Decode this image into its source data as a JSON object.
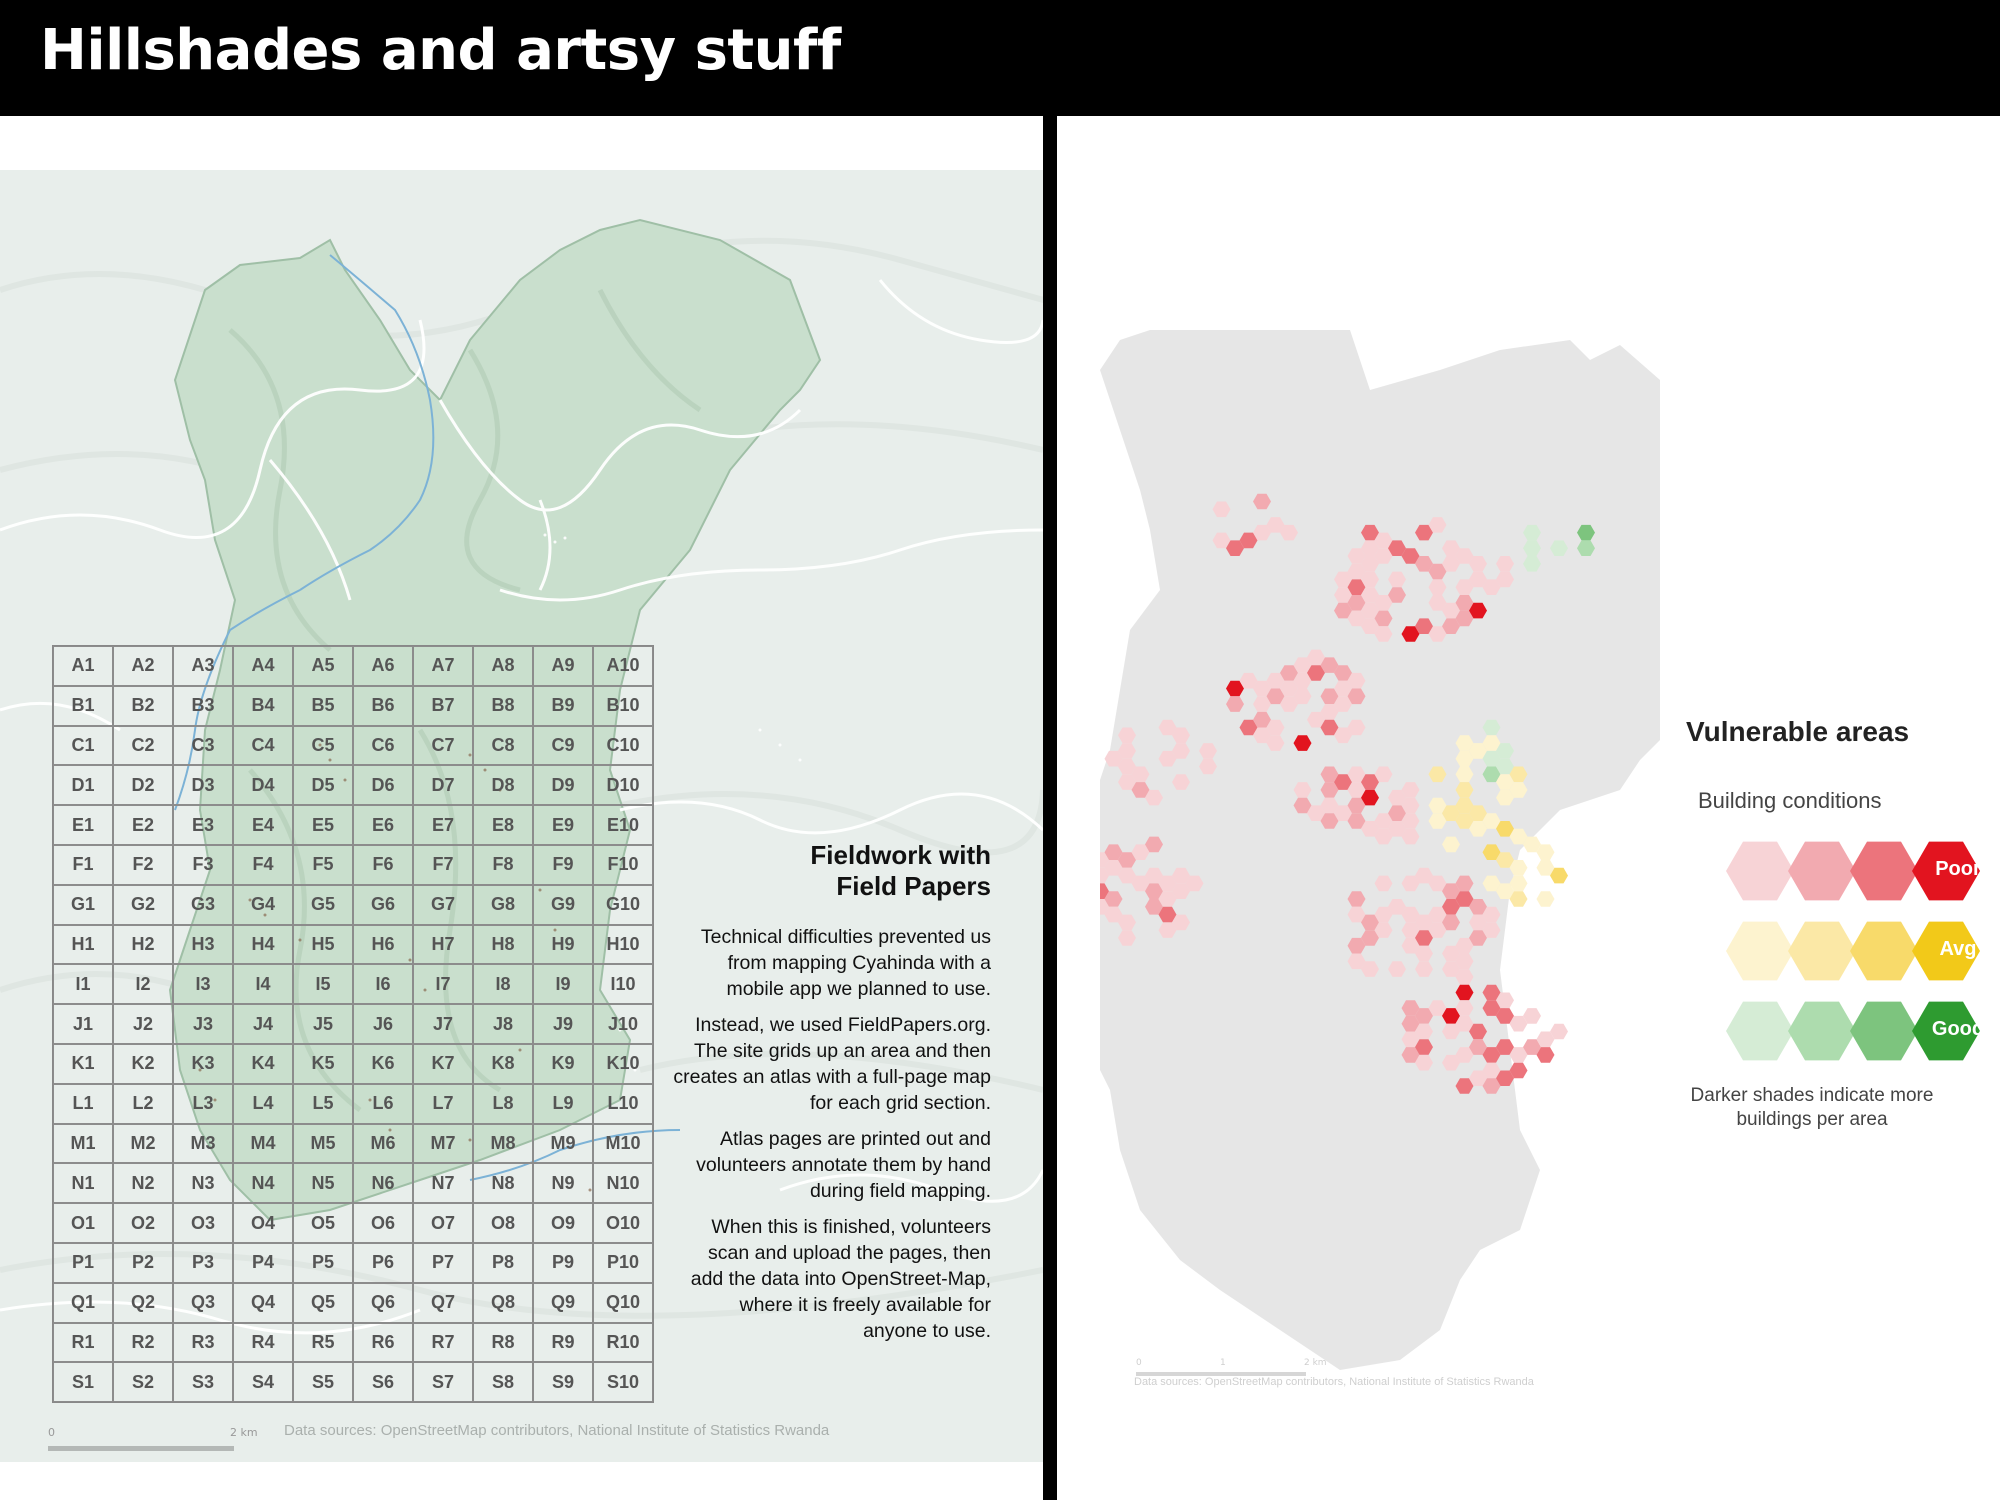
{
  "header": {
    "title": "Hillshades and artsy stuff"
  },
  "left_map": {
    "grid_rows": [
      "A",
      "B",
      "C",
      "D",
      "E",
      "F",
      "G",
      "H",
      "I",
      "J",
      "K",
      "L",
      "M",
      "N",
      "O",
      "P",
      "Q",
      "R",
      "S"
    ],
    "grid_cols": [
      "1",
      "2",
      "3",
      "4",
      "5",
      "6",
      "7",
      "8",
      "9",
      "10"
    ],
    "heading_line1": "Fieldwork with",
    "heading_line2": "Field Papers",
    "paragraphs": [
      "Technical difficulties prevented us from mapping Cyahinda with a mobile app we planned to use.",
      "Instead, we used FieldPapers.org. The site grids up an area and then creates an atlas with a full-page map for each grid section.",
      "Atlas pages are printed out and volunteers annotate them by hand during field mapping.",
      "When this is finished, volunteers scan and upload the pages, then add the data into OpenStreet-Map, where it is freely available for anyone to use."
    ],
    "scale_start": "0",
    "scale_end": "2 km",
    "sources": "Data sources: OpenStreetMap contributors, National Institute of Statistics Rwanda"
  },
  "right_map": {
    "legend_title": "Vulnerable areas",
    "legend_subtitle": "Building conditions",
    "legend_items": [
      {
        "label": "Poor",
        "colors": [
          "#f7d3d6",
          "#f2aab0",
          "#ec747c",
          "#e2141f"
        ]
      },
      {
        "label": "Avg",
        "colors": [
          "#fdf3cf",
          "#fbe8a6",
          "#f8da6a",
          "#f2c919"
        ]
      },
      {
        "label": "Good",
        "colors": [
          "#d5ecd5",
          "#addcae",
          "#7dc47e",
          "#2e9b30"
        ]
      }
    ],
    "legend_note": "Darker shades indicate more buildings per area",
    "scale_start": "0",
    "scale_mid": "1",
    "scale_end": "2 km",
    "sources": "Data sources: OpenStreetMap contributors, National Institute of Statistics Rwanda"
  }
}
